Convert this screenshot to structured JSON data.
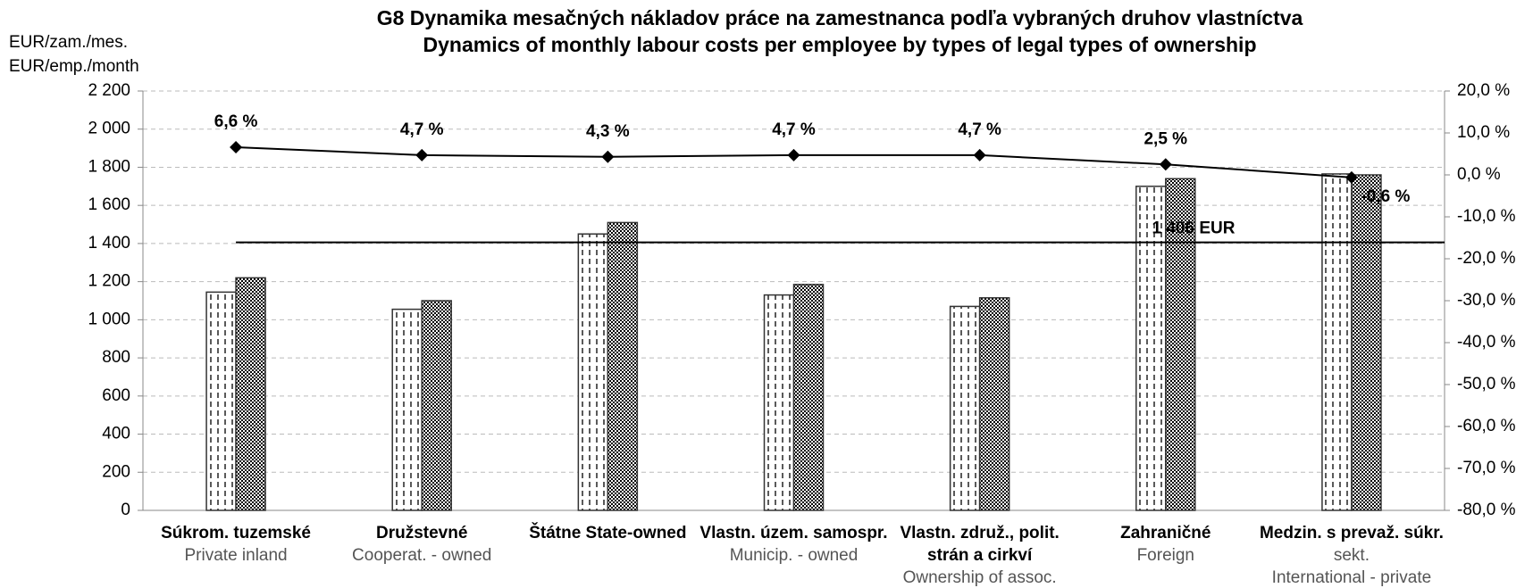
{
  "chart_data": {
    "type": "bar_line",
    "title": [
      "G8 Dynamika mesačných nákladov práce na zamestnanca podľa vybraných druhov vlastníctva",
      "Dynamics of monthly labour costs per employee by types of legal types of ownership"
    ],
    "y_label": [
      "EUR/zam./mes.",
      "EUR/emp./month"
    ],
    "categories": [
      [
        "Súkrom. tuzemské"
      ],
      [
        "Družstevné"
      ],
      [
        "Štátne   State-owned"
      ],
      [
        "Vlastn. územ. samospr."
      ],
      [
        "Vlastn. združ., polit.",
        "strán a cirkví"
      ],
      [
        "Zahraničné"
      ],
      [
        "Medzin. s prevaž. súkr."
      ]
    ],
    "categories_en": [
      [
        "Private inland"
      ],
      [
        "Cooperat. - owned"
      ],
      [],
      [
        "Municip. - owned"
      ],
      [
        "Ownership of assoc."
      ],
      [
        "Foreign"
      ],
      [
        "sekt.",
        "International - private"
      ]
    ],
    "series": [
      {
        "values": [
          1145,
          1055,
          1450,
          1130,
          1070,
          1700,
          1765
        ]
      },
      {
        "values": [
          1220,
          1100,
          1510,
          1185,
          1115,
          1740,
          1760
        ]
      },
      {
        "axis": "y2",
        "color": "#000000",
        "values": [
          6.6,
          4.7,
          4.3,
          4.7,
          4.7,
          2.5,
          -0.6
        ],
        "value_labels": [
          "6,6 %",
          "4,7 %",
          "4,3 %",
          "4,7 %",
          "4,7 %",
          "2,5 %",
          "-0,6 %"
        ]
      }
    ],
    "reference_line": {
      "value": 1406,
      "label": "1 406 EUR"
    },
    "ylim": [
      0,
      2200
    ],
    "yticks": [
      0,
      200,
      400,
      600,
      800,
      {
        "value": 1000,
        "label": "1 000"
      },
      {
        "value": 1200,
        "label": "1 200"
      },
      {
        "value": 1400,
        "label": "1 400"
      },
      {
        "value": 1600,
        "label": "1 600"
      },
      {
        "value": 1800,
        "label": "1 800"
      },
      {
        "value": 2000,
        "label": "2 000"
      },
      {
        "value": 2200,
        "label": "2 200"
      }
    ],
    "y2lim": [
      -80,
      20
    ],
    "y2ticks": [
      {
        "value": 20,
        "label": "20,0 %"
      },
      {
        "value": 10,
        "label": "10,0 %"
      },
      {
        "value": 0,
        "label": "0,0 %"
      },
      {
        "value": -10,
        "label": "-10,0 %"
      },
      {
        "value": -20,
        "label": "-20,0 %"
      },
      {
        "value": -30,
        "label": "-30,0 %"
      },
      {
        "value": -40,
        "label": "-40,0 %"
      },
      {
        "value": -50,
        "label": "-50,0 %"
      },
      {
        "value": -60,
        "label": "-60,0 %"
      },
      {
        "value": -70,
        "label": "-70,0 %"
      },
      {
        "value": -80,
        "label": "-80,0 %"
      }
    ],
    "grid": true
  }
}
